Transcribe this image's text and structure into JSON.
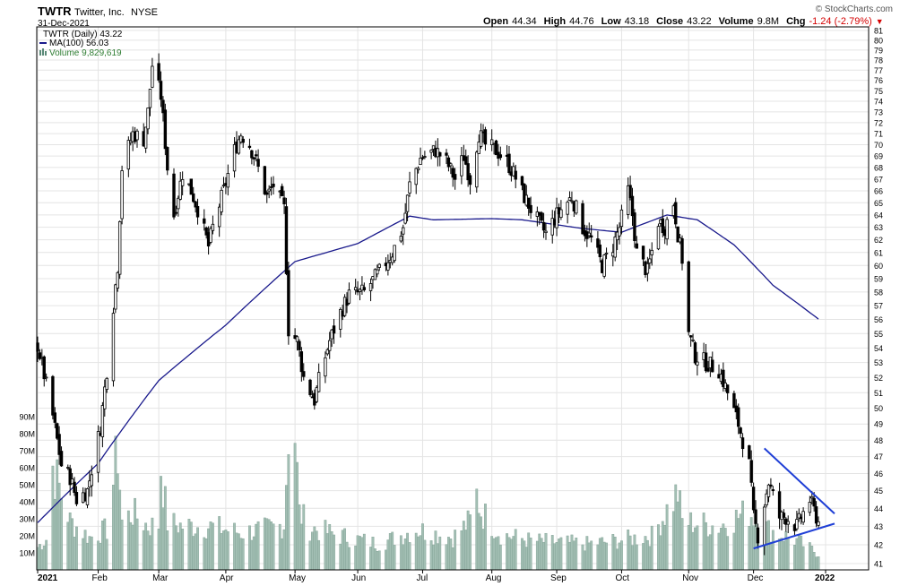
{
  "header": {
    "symbol": "TWTR",
    "company": "Twitter, Inc.",
    "exchange": "NYSE",
    "date": "31-Dec-2021",
    "copyright": "© StockCharts.com",
    "ohlc": [
      {
        "label": "Open",
        "value": "44.34"
      },
      {
        "label": "High",
        "value": "44.76"
      },
      {
        "label": "Low",
        "value": "43.18"
      },
      {
        "label": "Close",
        "value": "43.22"
      },
      {
        "label": "Volume",
        "value": "9.8M"
      },
      {
        "label": "Chg",
        "value": "-1.24 (-2.79%)"
      }
    ],
    "chg_arrow": "▼"
  },
  "legend": {
    "price": "TWTR (Daily) 43.22",
    "ma": "MA(100) 56.03",
    "volume": "Volume 9,829,619"
  },
  "colors": {
    "candle": "#000000",
    "ma": "#1a1a8c",
    "volume": "#a3bfb4",
    "volume_edge": "#7d9e91",
    "trendline": "#1f3fd6",
    "grid": "#e4e4e4",
    "chg": "#d40000",
    "volume_text": "#2e7d32"
  },
  "chart_data": {
    "type": "candlestick",
    "x_ticks": [
      "2021",
      "Feb",
      "Mar",
      "Apr",
      "May",
      "Jun",
      "Jul",
      "Aug",
      "Sep",
      "Oct",
      "Nov",
      "Dec",
      "2022"
    ],
    "y_ticks": [
      41,
      42,
      43,
      44,
      45,
      46,
      47,
      48,
      49,
      50,
      51,
      52,
      53,
      54,
      55,
      56,
      57,
      58,
      59,
      60,
      61,
      62,
      63,
      64,
      65,
      66,
      67,
      68,
      69,
      70,
      71,
      72,
      73,
      74,
      75,
      76,
      77,
      78,
      79,
      80,
      81
    ],
    "ylim": [
      41,
      81
    ],
    "y_scale": "log",
    "volume_ticks": [
      "10M",
      "20M",
      "30M",
      "40M",
      "50M",
      "60M",
      "70M",
      "80M",
      "90M"
    ],
    "volume_values": [
      10,
      20,
      30,
      40,
      50,
      60,
      70,
      80,
      90
    ],
    "price_anchors": [
      [
        "2021-01-04",
        54.2
      ],
      [
        "2021-01-08",
        51.5
      ],
      [
        "2021-01-11",
        49.5
      ],
      [
        "2021-01-15",
        46.5
      ],
      [
        "2021-01-19",
        45.8
      ],
      [
        "2021-01-22",
        44.5
      ],
      [
        "2021-01-27",
        45.0
      ],
      [
        "2021-02-02",
        48.8
      ],
      [
        "2021-02-05",
        52.5
      ],
      [
        "2021-02-10",
        60.0
      ],
      [
        "2021-02-12",
        68.0
      ],
      [
        "2021-02-17",
        71.0
      ],
      [
        "2021-02-22",
        70.5
      ],
      [
        "2021-02-24",
        73.0
      ],
      [
        "2021-02-26",
        77.5
      ],
      [
        "2021-03-02",
        74.5
      ],
      [
        "2021-03-05",
        68.0
      ],
      [
        "2021-03-08",
        64.0
      ],
      [
        "2021-03-12",
        67.5
      ],
      [
        "2021-03-16",
        66.0
      ],
      [
        "2021-03-19",
        64.5
      ],
      [
        "2021-03-24",
        61.5
      ],
      [
        "2021-03-26",
        63.0
      ],
      [
        "2021-03-31",
        66.0
      ],
      [
        "2021-04-05",
        69.5
      ],
      [
        "2021-04-08",
        71.0
      ],
      [
        "2021-04-12",
        70.0
      ],
      [
        "2021-04-15",
        68.5
      ],
      [
        "2021-04-20",
        65.5
      ],
      [
        "2021-04-23",
        66.5
      ],
      [
        "2021-04-28",
        64.5
      ],
      [
        "2021-04-30",
        55.3
      ],
      [
        "2021-05-04",
        54.5
      ],
      [
        "2021-05-07",
        52.0
      ],
      [
        "2021-05-12",
        50.5
      ],
      [
        "2021-05-14",
        51.8
      ],
      [
        "2021-05-19",
        54.5
      ],
      [
        "2021-05-24",
        56.5
      ],
      [
        "2021-05-28",
        57.8
      ],
      [
        "2021-06-04",
        58.0
      ],
      [
        "2021-06-11",
        59.5
      ],
      [
        "2021-06-17",
        61.0
      ],
      [
        "2021-06-22",
        63.0
      ],
      [
        "2021-06-25",
        66.5
      ],
      [
        "2021-06-30",
        68.8
      ],
      [
        "2021-07-07",
        69.5
      ],
      [
        "2021-07-12",
        68.5
      ],
      [
        "2021-07-16",
        67.0
      ],
      [
        "2021-07-20",
        69.0
      ],
      [
        "2021-07-23",
        67.0
      ],
      [
        "2021-07-27",
        71.0
      ],
      [
        "2021-07-30",
        70.0
      ],
      [
        "2021-08-04",
        69.5
      ],
      [
        "2021-08-09",
        68.5
      ],
      [
        "2021-08-12",
        67.5
      ],
      [
        "2021-08-17",
        65.5
      ],
      [
        "2021-08-20",
        64.5
      ],
      [
        "2021-08-25",
        63.0
      ],
      [
        "2021-08-27",
        62.5
      ],
      [
        "2021-09-01",
        64.0
      ],
      [
        "2021-09-08",
        65.5
      ],
      [
        "2021-09-13",
        63.0
      ],
      [
        "2021-09-17",
        62.0
      ],
      [
        "2021-09-22",
        60.0
      ],
      [
        "2021-09-27",
        61.5
      ],
      [
        "2021-09-30",
        63.0
      ],
      [
        "2021-10-04",
        66.0
      ],
      [
        "2021-10-06",
        64.0
      ],
      [
        "2021-10-08",
        61.0
      ],
      [
        "2021-10-13",
        59.5
      ],
      [
        "2021-10-18",
        63.5
      ],
      [
        "2021-10-21",
        63.0
      ],
      [
        "2021-10-25",
        65.0
      ],
      [
        "2021-10-27",
        62.5
      ],
      [
        "2021-10-29",
        60.5
      ],
      [
        "2021-11-01",
        55.0
      ],
      [
        "2021-11-04",
        53.5
      ],
      [
        "2021-11-09",
        53.0
      ],
      [
        "2021-11-15",
        52.5
      ],
      [
        "2021-11-19",
        51.0
      ],
      [
        "2021-11-24",
        49.0
      ],
      [
        "2021-11-29",
        46.5
      ],
      [
        "2021-12-01",
        43.5
      ],
      [
        "2021-12-03",
        42.5
      ],
      [
        "2021-12-08",
        45.5
      ],
      [
        "2021-12-13",
        43.5
      ],
      [
        "2021-12-16",
        43.5
      ],
      [
        "2021-12-21",
        43.0
      ],
      [
        "2021-12-27",
        44.5
      ],
      [
        "2021-12-31",
        43.22
      ]
    ],
    "ma100_anchors": [
      [
        "2021-01-04",
        43.2
      ],
      [
        "2021-02-01",
        46.6
      ],
      [
        "2021-03-01",
        51.8
      ],
      [
        "2021-04-01",
        55.6
      ],
      [
        "2021-05-03",
        60.3
      ],
      [
        "2021-06-01",
        61.7
      ],
      [
        "2021-06-25",
        63.9
      ],
      [
        "2021-07-06",
        63.6
      ],
      [
        "2021-08-02",
        63.7
      ],
      [
        "2021-08-16",
        63.6
      ],
      [
        "2021-09-13",
        62.9
      ],
      [
        "2021-10-01",
        62.6
      ],
      [
        "2021-10-22",
        64.0
      ],
      [
        "2021-11-05",
        63.6
      ],
      [
        "2021-11-22",
        61.6
      ],
      [
        "2021-12-10",
        58.5
      ],
      [
        "2021-12-31",
        56.03
      ]
    ],
    "volume_anchors": [
      [
        "2021-01-04",
        14
      ],
      [
        "2021-01-08",
        19
      ],
      [
        "2021-01-11",
        64
      ],
      [
        "2021-01-13",
        55
      ],
      [
        "2021-01-19",
        30
      ],
      [
        "2021-01-28",
        20
      ],
      [
        "2021-02-05",
        25
      ],
      [
        "2021-02-10",
        74
      ],
      [
        "2021-02-12",
        30
      ],
      [
        "2021-02-17",
        35
      ],
      [
        "2021-02-24",
        27
      ],
      [
        "2021-03-01",
        28
      ],
      [
        "2021-03-02",
        64
      ],
      [
        "2021-03-05",
        29
      ],
      [
        "2021-03-12",
        27
      ],
      [
        "2021-03-24",
        27
      ],
      [
        "2021-04-08",
        23
      ],
      [
        "2021-04-20",
        25
      ],
      [
        "2021-04-28",
        28
      ],
      [
        "2021-04-30",
        87
      ],
      [
        "2021-05-03",
        84
      ],
      [
        "2021-05-05",
        35
      ],
      [
        "2021-05-10",
        26
      ],
      [
        "2021-05-24",
        21
      ],
      [
        "2021-06-11",
        16
      ],
      [
        "2021-06-28",
        25
      ],
      [
        "2021-07-15",
        20
      ],
      [
        "2021-07-23",
        30
      ],
      [
        "2021-07-26",
        46
      ],
      [
        "2021-07-28",
        36
      ],
      [
        "2021-08-06",
        22
      ],
      [
        "2021-08-20",
        18
      ],
      [
        "2021-09-15",
        16
      ],
      [
        "2021-09-29",
        18
      ],
      [
        "2021-10-15",
        21
      ],
      [
        "2021-10-27",
        48
      ],
      [
        "2021-10-29",
        30
      ],
      [
        "2021-11-15",
        27
      ],
      [
        "2021-11-29",
        36
      ],
      [
        "2021-12-01",
        33
      ],
      [
        "2021-12-08",
        25
      ],
      [
        "2021-12-21",
        18
      ],
      [
        "2021-12-31",
        10
      ]
    ],
    "trendlines": [
      {
        "from": [
          "2021-12-06",
          47.5
        ],
        "to": [
          "2021-12-31",
          44.0
        ]
      },
      {
        "from": [
          "2021-12-01",
          41.8
        ],
        "to": [
          "2021-12-31",
          43.0
        ]
      }
    ],
    "title": "TWTR Twitter, Inc. NYSE",
    "xlabel": "",
    "ylabel": "",
    "grid": true
  }
}
